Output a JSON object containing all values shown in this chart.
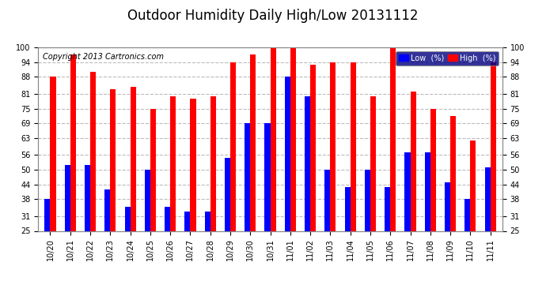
{
  "title": "Outdoor Humidity Daily High/Low 20131112",
  "copyright": "Copyright 2013 Cartronics.com",
  "legend_low": "Low  (%)",
  "legend_high": "High  (%)",
  "categories": [
    "10/20",
    "10/21",
    "10/22",
    "10/23",
    "10/24",
    "10/25",
    "10/26",
    "10/27",
    "10/28",
    "10/29",
    "10/30",
    "10/31",
    "11/01",
    "11/02",
    "11/03",
    "11/04",
    "11/05",
    "11/06",
    "11/07",
    "11/08",
    "11/09",
    "11/10",
    "11/11"
  ],
  "low": [
    38,
    52,
    52,
    42,
    35,
    50,
    35,
    33,
    33,
    55,
    69,
    69,
    88,
    80,
    50,
    43,
    50,
    43,
    57,
    57,
    45,
    38,
    51
  ],
  "high": [
    88,
    97,
    90,
    83,
    84,
    75,
    80,
    79,
    80,
    94,
    97,
    100,
    100,
    93,
    94,
    94,
    80,
    100,
    82,
    75,
    72,
    62,
    94
  ],
  "low_color": "#0000ff",
  "high_color": "#ff0000",
  "bg_color": "#ffffff",
  "plot_bg_color": "#ffffff",
  "grid_color": "#bbbbbb",
  "yticks": [
    25,
    31,
    38,
    44,
    50,
    56,
    63,
    69,
    75,
    81,
    88,
    94,
    100
  ],
  "ymin": 25,
  "ymax": 100,
  "bar_width": 0.28,
  "title_fontsize": 12,
  "tick_fontsize": 7,
  "copyright_fontsize": 7,
  "legend_fontsize": 7
}
